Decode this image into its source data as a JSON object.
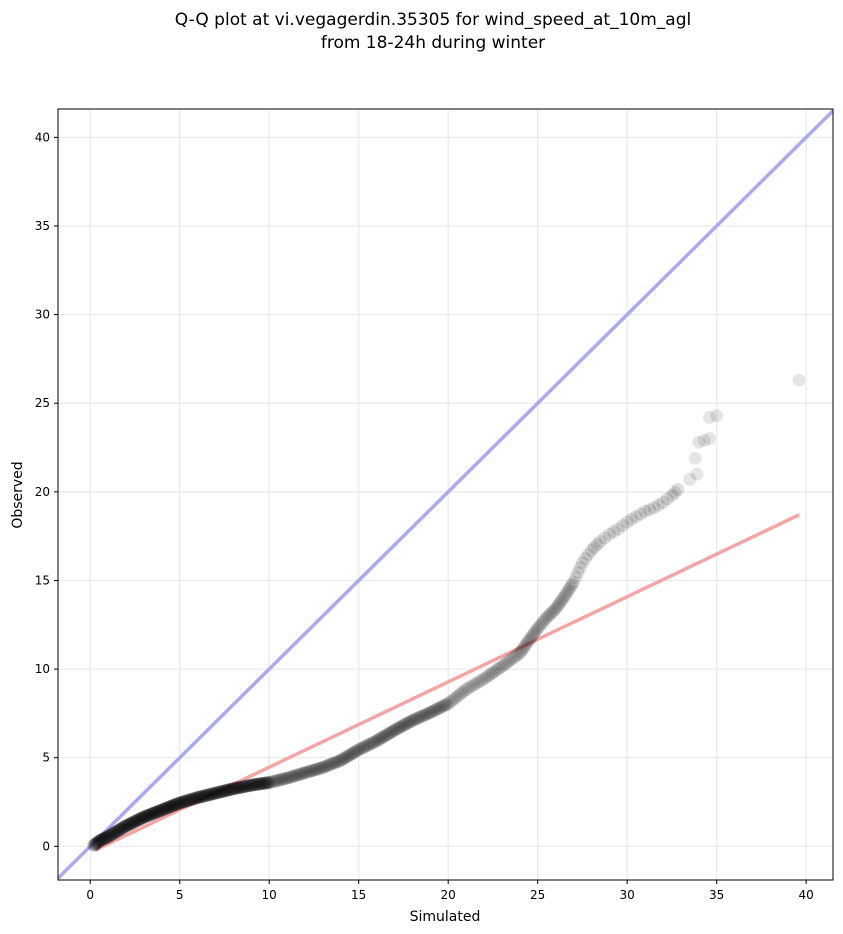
{
  "chart_data": {
    "type": "scatter",
    "title": "Q-Q plot at vi.vegagerdin.35305 for wind_speed_at_10m_agl",
    "subtitle": "from 18-24h during winter",
    "xlabel": "Simulated",
    "ylabel": "Observed",
    "xlim": [
      -1.8,
      41.5
    ],
    "ylim": [
      -1.9,
      41.6
    ],
    "xticks": [
      0,
      5,
      10,
      15,
      20,
      25,
      30,
      35,
      40
    ],
    "yticks": [
      0,
      5,
      10,
      15,
      20,
      25,
      30,
      35,
      40
    ],
    "grid": true,
    "colors": {
      "points": "#000000",
      "identity_line": "#aaaaee",
      "fit_line": "#f4a6a6"
    },
    "reference_lines": [
      {
        "kind": "identity",
        "x": [
          -1.8,
          41.5
        ],
        "y": [
          -1.8,
          41.5
        ]
      },
      {
        "kind": "linear-fit",
        "x": [
          0.3,
          39.6
        ],
        "y": [
          -0.2,
          18.7
        ]
      }
    ],
    "quantile_curve": {
      "x": [
        0.2,
        0.5,
        1,
        1.5,
        2,
        2.5,
        3,
        3.5,
        4,
        4.5,
        5,
        5.5,
        6,
        7,
        8,
        9,
        10,
        11,
        12,
        13,
        14,
        15,
        16,
        17,
        18,
        19,
        20,
        21,
        22,
        23,
        24,
        24.5,
        25,
        25.5,
        26,
        26.5,
        27,
        27.5,
        28,
        28.5,
        29,
        29.5,
        30,
        30.5,
        31,
        31.5,
        32,
        32.5,
        33
      ],
      "y": [
        0.05,
        0.3,
        0.55,
        0.85,
        1.15,
        1.4,
        1.65,
        1.85,
        2.05,
        2.25,
        2.45,
        2.6,
        2.75,
        3.0,
        3.25,
        3.45,
        3.6,
        3.85,
        4.15,
        4.45,
        4.85,
        5.45,
        5.95,
        6.55,
        7.1,
        7.55,
        8.05,
        8.85,
        9.45,
        10.15,
        10.9,
        11.6,
        12.3,
        12.9,
        13.4,
        14.1,
        14.9,
        16.0,
        16.7,
        17.2,
        17.6,
        17.9,
        18.3,
        18.6,
        18.9,
        19.1,
        19.4,
        19.8,
        20.3
      ]
    },
    "tail_points": [
      {
        "x": 33.5,
        "y": 20.7
      },
      {
        "x": 33.9,
        "y": 21.0
      },
      {
        "x": 33.8,
        "y": 21.9
      },
      {
        "x": 34.0,
        "y": 22.8
      },
      {
        "x": 34.3,
        "y": 22.9
      },
      {
        "x": 34.6,
        "y": 23.0
      },
      {
        "x": 34.6,
        "y": 24.2
      },
      {
        "x": 35.0,
        "y": 24.3
      },
      {
        "x": 39.6,
        "y": 26.3
      }
    ]
  }
}
